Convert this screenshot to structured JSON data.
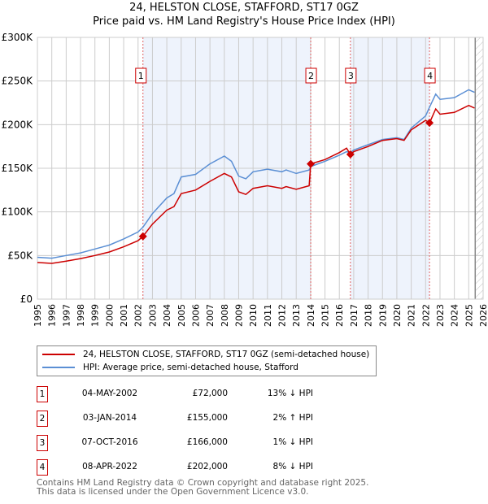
{
  "title": "24, HELSTON CLOSE, STAFFORD, ST17 0GZ",
  "subtitle": "Price paid vs. HM Land Registry's House Price Index (HPI)",
  "colors": {
    "price": "#cc0000",
    "hpi": "#5b8fd4",
    "shade": "#eef3fc"
  },
  "chart_data": {
    "type": "line",
    "title": "24, HELSTON CLOSE, STAFFORD, ST17 0GZ",
    "ylim": [
      0,
      300000
    ],
    "xlim": [
      1995,
      2026
    ],
    "yticks": [
      {
        "v": 0,
        "l": "£0"
      },
      {
        "v": 50000,
        "l": "£50K"
      },
      {
        "v": 100000,
        "l": "£100K"
      },
      {
        "v": 150000,
        "l": "£150K"
      },
      {
        "v": 200000,
        "l": "£200K"
      },
      {
        "v": 250000,
        "l": "£250K"
      },
      {
        "v": 300000,
        "l": "£300K"
      }
    ],
    "xticks": [
      "1995",
      "1996",
      "1997",
      "1998",
      "1999",
      "2000",
      "2001",
      "2002",
      "2003",
      "2004",
      "2005",
      "2006",
      "2007",
      "2008",
      "2009",
      "2010",
      "2011",
      "2012",
      "2013",
      "2014",
      "2015",
      "2016",
      "2017",
      "2018",
      "2019",
      "2020",
      "2021",
      "2022",
      "2023",
      "2024",
      "2025",
      "2026"
    ],
    "series": [
      {
        "name": "24, HELSTON CLOSE, STAFFORD, ST17 0GZ (semi-detached house)",
        "color": "#cc0000",
        "x": [
          1995,
          1996,
          1997,
          1998,
          1999,
          2000,
          2001,
          2002,
          2002.34,
          2003,
          2004,
          2004.5,
          2005,
          2006,
          2007,
          2008,
          2008.5,
          2009,
          2009.5,
          2010,
          2011,
          2012,
          2012.3,
          2013,
          2013.9,
          2014.01,
          2015,
          2016,
          2016.5,
          2016.77,
          2017,
          2018,
          2019,
          2020,
          2020.5,
          2021,
          2022,
          2022.27,
          2022.7,
          2023,
          2024,
          2025,
          2025.4
        ],
        "y": [
          42000,
          41000,
          43500,
          46500,
          50000,
          54000,
          60000,
          67000,
          72000,
          86000,
          102000,
          106000,
          121000,
          125000,
          135000,
          144000,
          140000,
          123000,
          120000,
          127000,
          130000,
          127000,
          129000,
          126000,
          130000,
          155000,
          160000,
          168000,
          173000,
          166000,
          169000,
          175000,
          182000,
          184000,
          182000,
          194000,
          205000,
          202000,
          218000,
          212000,
          214000,
          222000,
          219000
        ]
      },
      {
        "name": "HPI: Average price, semi-detached house, Stafford",
        "color": "#5b8fd4",
        "x": [
          1995,
          1996,
          1997,
          1998,
          1999,
          2000,
          2001,
          2002,
          2002.34,
          2003,
          2004,
          2004.5,
          2005,
          2006,
          2007,
          2008,
          2008.5,
          2009,
          2009.5,
          2010,
          2011,
          2012,
          2012.3,
          2013,
          2013.9,
          2014.01,
          2015,
          2016,
          2016.5,
          2016.77,
          2017,
          2018,
          2019,
          2020,
          2020.5,
          2021,
          2022,
          2022.27,
          2022.7,
          2023,
          2024,
          2025,
          2025.4
        ],
        "y": [
          48000,
          47000,
          50000,
          53000,
          57500,
          62000,
          69000,
          77000,
          82500,
          98000,
          116000,
          121000,
          140000,
          143000,
          155000,
          164000,
          158000,
          141000,
          138000,
          146000,
          149000,
          146000,
          148000,
          144000,
          148000,
          152000,
          158000,
          165000,
          169000,
          168000,
          171000,
          177000,
          183000,
          185000,
          183000,
          196000,
          210000,
          220000,
          235000,
          229000,
          231000,
          240000,
          237000
        ]
      }
    ],
    "sales": [
      {
        "n": "1",
        "x": 2002.34,
        "y": 72000
      },
      {
        "n": "2",
        "x": 2014.01,
        "y": 155000
      },
      {
        "n": "3",
        "x": 2016.77,
        "y": 166000
      },
      {
        "n": "4",
        "x": 2022.27,
        "y": 202000
      }
    ],
    "data_end": 2025.45
  },
  "legend": {
    "price": "24, HELSTON CLOSE, STAFFORD, ST17 0GZ (semi-detached house)",
    "hpi": "HPI: Average price, semi-detached house, Stafford"
  },
  "transactions": [
    {
      "n": "1",
      "date": "04-MAY-2002",
      "price": "£72,000",
      "hpi": "13% ↓ HPI"
    },
    {
      "n": "2",
      "date": "03-JAN-2014",
      "price": "£155,000",
      "hpi": "2% ↑ HPI"
    },
    {
      "n": "3",
      "date": "07-OCT-2016",
      "price": "£166,000",
      "hpi": "1% ↓ HPI"
    },
    {
      "n": "4",
      "date": "08-APR-2022",
      "price": "£202,000",
      "hpi": "8% ↓ HPI"
    }
  ],
  "footer": {
    "line1": "Contains HM Land Registry data © Crown copyright and database right 2025.",
    "line2": "This data is licensed under the Open Government Licence v3.0."
  }
}
